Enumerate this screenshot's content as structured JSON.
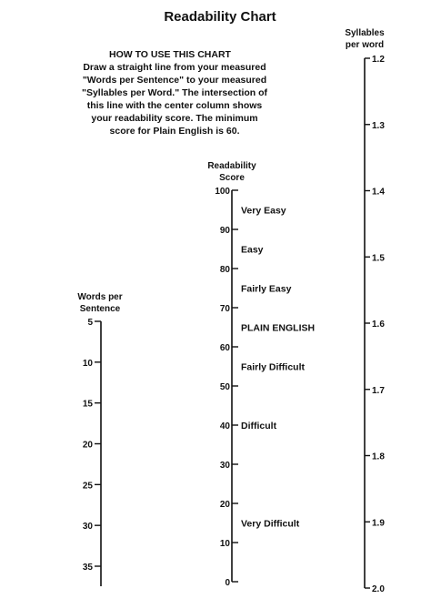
{
  "chart_data": {
    "type": "nomogram",
    "title": "Readability Chart",
    "instructions": {
      "heading": "HOW TO USE THIS CHART",
      "lines": [
        "Draw a straight line from your measured",
        "\"Words per Sentence\" to your measured",
        "\"Syllables per Word.\" The intersection of",
        "this line with the center column shows",
        "your readability score. The minimum",
        "score for Plain English is 60."
      ]
    },
    "scales": [
      {
        "id": "words",
        "label_lines": [
          "Words per",
          "Sentence"
        ],
        "ticks": [
          "5",
          "10",
          "15",
          "20",
          "25",
          "30",
          "35"
        ],
        "range": [
          5,
          35
        ]
      },
      {
        "id": "score",
        "label_lines": [
          "Readability",
          "Score"
        ],
        "ticks": [
          "100",
          "90",
          "80",
          "70",
          "60",
          "50",
          "40",
          "30",
          "20",
          "10",
          "0"
        ],
        "range": [
          100,
          0
        ],
        "bands": [
          {
            "label": "Very Easy",
            "at": 95
          },
          {
            "label": "Easy",
            "at": 85
          },
          {
            "label": "Fairly Easy",
            "at": 75
          },
          {
            "label": "PLAIN ENGLISH",
            "at": 65
          },
          {
            "label": "Fairly Difficult",
            "at": 55
          },
          {
            "label": "Difficult",
            "at": 40
          },
          {
            "label": "Very Difficult",
            "at": 15
          }
        ]
      },
      {
        "id": "syllables",
        "label_lines": [
          "Syllables",
          "per word"
        ],
        "ticks": [
          "1.2",
          "1.3",
          "1.4",
          "1.5",
          "1.6",
          "1.7",
          "1.8",
          "1.9",
          "2.0"
        ],
        "range": [
          1.2,
          2.0
        ]
      }
    ]
  }
}
